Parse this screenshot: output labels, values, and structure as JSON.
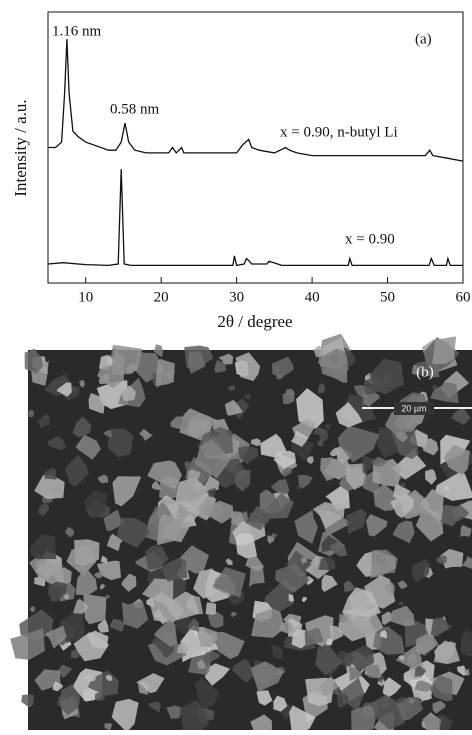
{
  "chart_data": {
    "type": "line",
    "panel_label": "(a)",
    "ylabel": "Intensity / a.u.",
    "xlabel": "2θ / degree",
    "xlim": [
      5,
      60
    ],
    "xticks": [
      10,
      20,
      30,
      40,
      50,
      60
    ],
    "ylim": [
      0,
      100
    ],
    "annotations": [
      "1.16 nm",
      "0.58 nm"
    ],
    "series": [
      {
        "name": "x = 0.90, n-butyl Li",
        "color": "#111111",
        "x": [
          5,
          6,
          6.8,
          7.2,
          7.5,
          7.8,
          8.3,
          9,
          10,
          11,
          12,
          13,
          14,
          14.7,
          15.2,
          15.7,
          16.5,
          18,
          20,
          21,
          21.5,
          22,
          22.7,
          23,
          25,
          28,
          30,
          30.8,
          31.2,
          31.6,
          32,
          33,
          35,
          36.5,
          37,
          38,
          40,
          45,
          50,
          55,
          55.6,
          56,
          58,
          60
        ],
        "values": [
          50,
          50,
          52,
          70,
          90,
          70,
          56,
          54,
          52,
          51,
          50,
          49,
          49,
          52,
          59,
          52,
          49,
          48,
          48,
          48,
          50,
          48,
          50,
          48,
          48,
          48,
          48,
          51,
          52,
          53,
          50,
          49,
          48,
          50,
          49,
          48,
          47,
          47,
          47,
          47,
          49,
          47,
          46,
          45
        ]
      },
      {
        "name": "x = 0.90",
        "color": "#111111",
        "x": [
          5,
          7,
          10,
          13,
          14.3,
          14.7,
          15.1,
          16,
          20,
          25,
          29.5,
          29.7,
          30,
          31,
          31.3,
          31.7,
          32,
          34,
          34.3,
          36,
          40,
          44.8,
          45,
          45.3,
          50,
          55.5,
          55.8,
          56.2,
          57.8,
          58,
          58.3,
          60
        ],
        "values": [
          7,
          7.5,
          6.8,
          6.5,
          7,
          42,
          7,
          6.5,
          6.5,
          6.5,
          6.5,
          10,
          6.5,
          7,
          9,
          8,
          7,
          7,
          8,
          6.5,
          6.5,
          6.5,
          9,
          6.5,
          6.5,
          6.5,
          9,
          6.5,
          6.5,
          9,
          6.5,
          6.5
        ]
      }
    ]
  },
  "image_panel": {
    "label": "(b)",
    "scale_bar": "20 µm"
  }
}
